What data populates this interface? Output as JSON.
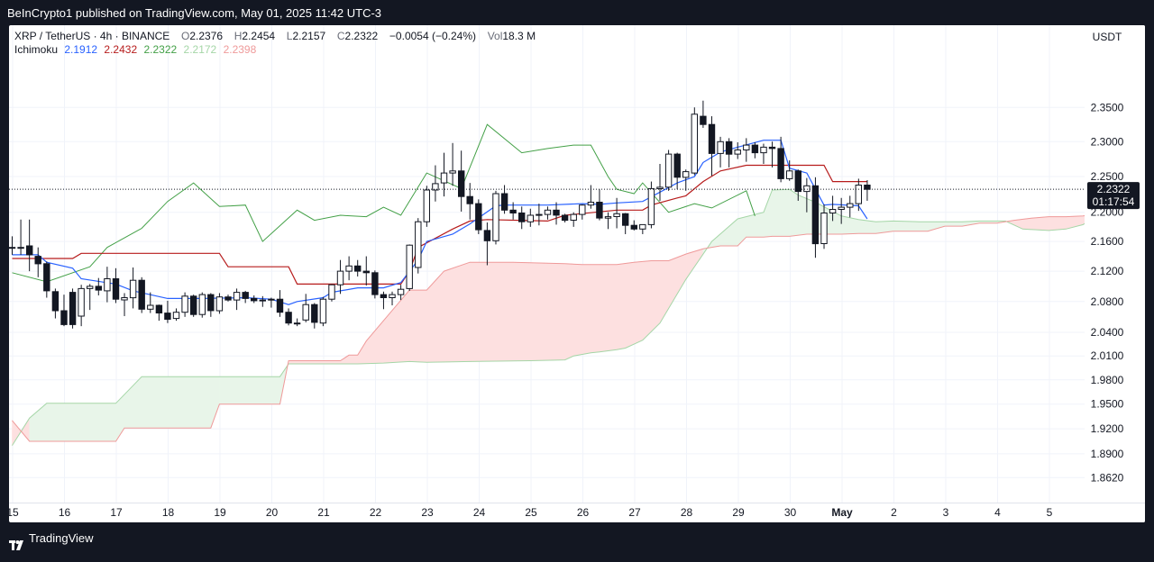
{
  "header": {
    "published": "BeInCrypto1 published on TradingView.com, May 01, 2025 11:42 UTC-3"
  },
  "legend": {
    "symbol": "XRP / TetherUS · 4h · BINANCE",
    "open_label": "O",
    "open": "2.2376",
    "high_label": "H",
    "high": "2.2454",
    "low_label": "L",
    "low": "2.2157",
    "close_label": "C",
    "close": "2.2322",
    "change": "−0.0054 (−0.24%)",
    "volume_label": "Vol",
    "volume": "18.3 M",
    "indicator_name": "Ichimoku",
    "indicator_values": [
      "2.1912",
      "2.2432",
      "2.2322",
      "2.2172",
      "2.2398"
    ]
  },
  "axis": {
    "currency": "USDT",
    "price_ticks": [
      "2.3500",
      "2.3000",
      "2.2500",
      "2.2000",
      "2.1600",
      "2.1200",
      "2.0800",
      "2.0400",
      "2.0100",
      "1.9800",
      "1.9500",
      "1.9200",
      "1.8900",
      "1.8620"
    ],
    "date_ticks": [
      "15",
      "16",
      "17",
      "18",
      "19",
      "20",
      "21",
      "22",
      "23",
      "24",
      "25",
      "26",
      "27",
      "28",
      "29",
      "30",
      "May",
      "2",
      "3",
      "4",
      "5"
    ],
    "last_price": "2.2322",
    "countdown": "01:17:54"
  },
  "footer": {
    "brand": "TradingView"
  },
  "colors": {
    "background": "#ffffff",
    "frame": "#131722",
    "conversion_line": "#2962ff",
    "base_line": "#b71c1c",
    "lagging_span": "#43a047",
    "leading_span_a": "#a5d6a7",
    "leading_span_b": "#ef9a9a",
    "cloud_bull": "#e8f5e9",
    "cloud_bear": "#fde0e0",
    "candle_up": "#ffffff",
    "candle_down": "#131722"
  },
  "chart_data": {
    "type": "candlestick",
    "timeframe": "4h",
    "y_scale": "log",
    "ylim": [
      1.846,
      2.392
    ],
    "first_candle_date": "Apr 14, 2025 20:00",
    "candles": [
      [
        2.152,
        2.167,
        2.142,
        2.152
      ],
      [
        2.151,
        2.19,
        2.142,
        2.152
      ],
      [
        2.154,
        2.19,
        2.12,
        2.142
      ],
      [
        2.14,
        2.152,
        2.112,
        2.13
      ],
      [
        2.13,
        2.133,
        2.085,
        2.094
      ],
      [
        2.093,
        2.097,
        2.058,
        2.068
      ],
      [
        2.068,
        2.089,
        2.048,
        2.05
      ],
      [
        2.092,
        2.097,
        2.045,
        2.05
      ],
      [
        2.061,
        2.102,
        2.048,
        2.097
      ],
      [
        2.097,
        2.103,
        2.069,
        2.1
      ],
      [
        2.1,
        2.111,
        2.088,
        2.095
      ],
      [
        2.094,
        2.126,
        2.079,
        2.11
      ],
      [
        2.11,
        2.124,
        2.078,
        2.083
      ],
      [
        2.082,
        2.091,
        2.061,
        2.085
      ],
      [
        2.085,
        2.125,
        2.071,
        2.108
      ],
      [
        2.108,
        2.112,
        2.065,
        2.07
      ],
      [
        2.07,
        2.092,
        2.065,
        2.075
      ],
      [
        2.075,
        2.076,
        2.055,
        2.065
      ],
      [
        2.065,
        2.081,
        2.052,
        2.057
      ],
      [
        2.058,
        2.071,
        2.055,
        2.066
      ],
      [
        2.066,
        2.092,
        2.06,
        2.087
      ],
      [
        2.087,
        2.089,
        2.06,
        2.063
      ],
      [
        2.063,
        2.092,
        2.059,
        2.089
      ],
      [
        2.089,
        2.091,
        2.06,
        2.068
      ],
      [
        2.068,
        2.091,
        2.064,
        2.086
      ],
      [
        2.086,
        2.089,
        2.08,
        2.082
      ],
      [
        2.082,
        2.097,
        2.069,
        2.092
      ],
      [
        2.092,
        2.094,
        2.078,
        2.084
      ],
      [
        2.084,
        2.088,
        2.078,
        2.081
      ],
      [
        2.081,
        2.087,
        2.073,
        2.082
      ],
      [
        2.082,
        2.085,
        2.072,
        2.083
      ],
      [
        2.083,
        2.095,
        2.06,
        2.066
      ],
      [
        2.066,
        2.071,
        2.049,
        2.052
      ],
      [
        2.052,
        2.058,
        2.048,
        2.051
      ],
      [
        2.056,
        2.09,
        2.053,
        2.076
      ],
      [
        2.076,
        2.078,
        2.045,
        2.053
      ],
      [
        2.052,
        2.086,
        2.048,
        2.083
      ],
      [
        2.083,
        2.103,
        2.08,
        2.102
      ],
      [
        2.102,
        2.135,
        2.09,
        2.12
      ],
      [
        2.12,
        2.14,
        2.108,
        2.127
      ],
      [
        2.127,
        2.135,
        2.113,
        2.12
      ],
      [
        2.12,
        2.14,
        2.101,
        2.118
      ],
      [
        2.118,
        2.121,
        2.084,
        2.089
      ],
      [
        2.089,
        2.093,
        2.07,
        2.085
      ],
      [
        2.085,
        2.093,
        2.075,
        2.089
      ],
      [
        2.089,
        2.102,
        2.082,
        2.096
      ],
      [
        2.097,
        2.156,
        2.094,
        2.155
      ],
      [
        2.125,
        2.192,
        2.117,
        2.187
      ],
      [
        2.187,
        2.237,
        2.18,
        2.231
      ],
      [
        2.231,
        2.266,
        2.215,
        2.24
      ],
      [
        2.241,
        2.284,
        2.222,
        2.255
      ],
      [
        2.255,
        2.298,
        2.237,
        2.258
      ],
      [
        2.258,
        2.287,
        2.201,
        2.222
      ],
      [
        2.222,
        2.241,
        2.19,
        2.212
      ],
      [
        2.212,
        2.218,
        2.17,
        2.176
      ],
      [
        2.175,
        2.186,
        2.128,
        2.161
      ],
      [
        2.161,
        2.23,
        2.156,
        2.226
      ],
      [
        2.226,
        2.238,
        2.198,
        2.203
      ],
      [
        2.203,
        2.214,
        2.19,
        2.199
      ],
      [
        2.199,
        2.208,
        2.177,
        2.187
      ],
      [
        2.187,
        2.205,
        2.18,
        2.196
      ],
      [
        2.196,
        2.212,
        2.182,
        2.197
      ],
      [
        2.197,
        2.208,
        2.19,
        2.203
      ],
      [
        2.203,
        2.214,
        2.183,
        2.196
      ],
      [
        2.196,
        2.198,
        2.186,
        2.189
      ],
      [
        2.189,
        2.2,
        2.18,
        2.197
      ],
      [
        2.197,
        2.211,
        2.19,
        2.21
      ],
      [
        2.21,
        2.238,
        2.205,
        2.214
      ],
      [
        2.214,
        2.232,
        2.189,
        2.192
      ],
      [
        2.192,
        2.2,
        2.177,
        2.194
      ],
      [
        2.194,
        2.22,
        2.178,
        2.198
      ],
      [
        2.198,
        2.199,
        2.17,
        2.182
      ],
      [
        2.182,
        2.189,
        2.175,
        2.177
      ],
      [
        2.177,
        2.182,
        2.17,
        2.183
      ],
      [
        2.183,
        2.243,
        2.178,
        2.233
      ],
      [
        2.233,
        2.268,
        2.216,
        2.235
      ],
      [
        2.235,
        2.288,
        2.23,
        2.282
      ],
      [
        2.282,
        2.284,
        2.232,
        2.249
      ],
      [
        2.249,
        2.26,
        2.23,
        2.257
      ],
      [
        2.255,
        2.35,
        2.252,
        2.34
      ],
      [
        2.337,
        2.36,
        2.32,
        2.325
      ],
      [
        2.325,
        2.337,
        2.251,
        2.283
      ],
      [
        2.283,
        2.307,
        2.263,
        2.3
      ],
      [
        2.3,
        2.305,
        2.263,
        2.282
      ],
      [
        2.282,
        2.299,
        2.275,
        2.288
      ],
      [
        2.288,
        2.305,
        2.271,
        2.295
      ],
      [
        2.295,
        2.299,
        2.276,
        2.284
      ],
      [
        2.284,
        2.297,
        2.268,
        2.292
      ],
      [
        2.292,
        2.3,
        2.263,
        2.29
      ],
      [
        2.29,
        2.307,
        2.242,
        2.247
      ],
      [
        2.247,
        2.273,
        2.244,
        2.258
      ],
      [
        2.258,
        2.26,
        2.216,
        2.229
      ],
      [
        2.229,
        2.248,
        2.2,
        2.237
      ],
      [
        2.237,
        2.249,
        2.138,
        2.157
      ],
      [
        2.157,
        2.211,
        2.15,
        2.199
      ],
      [
        2.199,
        2.223,
        2.188,
        2.204
      ],
      [
        2.204,
        2.22,
        2.184,
        2.207
      ],
      [
        2.207,
        2.223,
        2.193,
        2.212
      ],
      [
        2.212,
        2.247,
        2.202,
        2.238
      ],
      [
        2.238,
        2.245,
        2.216,
        2.232
      ]
    ],
    "conversion_line": [
      [
        0,
        2.142
      ],
      [
        3,
        2.142
      ],
      [
        4,
        2.132
      ],
      [
        7,
        2.124
      ],
      [
        8,
        2.11
      ],
      [
        12,
        2.103
      ],
      [
        14,
        2.094
      ],
      [
        18,
        2.084
      ],
      [
        22,
        2.084
      ],
      [
        27,
        2.085
      ],
      [
        30,
        2.083
      ],
      [
        32,
        2.076
      ],
      [
        33,
        2.08
      ],
      [
        36,
        2.085
      ],
      [
        37,
        2.092
      ],
      [
        40,
        2.098
      ],
      [
        43,
        2.098
      ],
      [
        45,
        2.105
      ],
      [
        47,
        2.135
      ],
      [
        48,
        2.16
      ],
      [
        51,
        2.17
      ],
      [
        53,
        2.184
      ],
      [
        56,
        2.209
      ],
      [
        57,
        2.21
      ],
      [
        62,
        2.21
      ],
      [
        66,
        2.212
      ],
      [
        68,
        2.211
      ],
      [
        70,
        2.213
      ],
      [
        73,
        2.215
      ],
      [
        77,
        2.241
      ],
      [
        79,
        2.25
      ],
      [
        80,
        2.27
      ],
      [
        82,
        2.285
      ],
      [
        84,
        2.292
      ],
      [
        87,
        2.302
      ],
      [
        89,
        2.302
      ],
      [
        90,
        2.262
      ],
      [
        92,
        2.255
      ],
      [
        94,
        2.21
      ],
      [
        95,
        2.211
      ],
      [
        98,
        2.209
      ],
      [
        99,
        2.191
      ]
    ],
    "base_line": [
      [
        0,
        2.137
      ],
      [
        7,
        2.137
      ],
      [
        8,
        2.144
      ],
      [
        24,
        2.144
      ],
      [
        25,
        2.126
      ],
      [
        32,
        2.126
      ],
      [
        33,
        2.103
      ],
      [
        40,
        2.103
      ],
      [
        45,
        2.103
      ],
      [
        46,
        2.12
      ],
      [
        47,
        2.152
      ],
      [
        51,
        2.177
      ],
      [
        53,
        2.188
      ],
      [
        55,
        2.19
      ],
      [
        62,
        2.188
      ],
      [
        64,
        2.196
      ],
      [
        70,
        2.203
      ],
      [
        73,
        2.203
      ],
      [
        74,
        2.21
      ],
      [
        77,
        2.22
      ],
      [
        78,
        2.223
      ],
      [
        80,
        2.243
      ],
      [
        82,
        2.258
      ],
      [
        85,
        2.266
      ],
      [
        94,
        2.266
      ],
      [
        95,
        2.243
      ],
      [
        99,
        2.243
      ]
    ],
    "lagging_span": [
      [
        0,
        2.118
      ],
      [
        4,
        2.106
      ],
      [
        9,
        2.126
      ],
      [
        11,
        2.152
      ],
      [
        15,
        2.178
      ],
      [
        18,
        2.215
      ],
      [
        21,
        2.241
      ],
      [
        24,
        2.208
      ],
      [
        27,
        2.21
      ],
      [
        29,
        2.16
      ],
      [
        33,
        2.203
      ],
      [
        35,
        2.189
      ],
      [
        38,
        2.196
      ],
      [
        41,
        2.194
      ],
      [
        43,
        2.207
      ],
      [
        45,
        2.196
      ],
      [
        48,
        2.255
      ],
      [
        52,
        2.233
      ],
      [
        55,
        2.325
      ],
      [
        59,
        2.284
      ],
      [
        62,
        2.29
      ],
      [
        65,
        2.295
      ],
      [
        67,
        2.295
      ],
      [
        69,
        2.25
      ],
      [
        70,
        2.232
      ],
      [
        72,
        2.226
      ],
      [
        73,
        2.241
      ],
      [
        76,
        2.2
      ],
      [
        79,
        2.212
      ],
      [
        81,
        2.206
      ],
      [
        85,
        2.23
      ],
      [
        86,
        2.195
      ]
    ],
    "leading_span_a": [
      [
        0,
        1.9
      ],
      [
        2,
        1.933
      ],
      [
        4,
        1.951
      ],
      [
        12,
        1.951
      ],
      [
        15,
        1.984
      ],
      [
        23,
        1.984
      ],
      [
        31,
        1.984
      ],
      [
        32,
        2.0
      ],
      [
        33,
        2.0
      ],
      [
        40,
        2.0
      ],
      [
        43,
        2.001
      ],
      [
        46,
        2.003
      ],
      [
        48,
        2.002
      ],
      [
        53,
        2.003
      ],
      [
        60,
        2.004
      ],
      [
        64,
        2.005
      ],
      [
        65,
        2.01
      ],
      [
        67,
        2.014
      ],
      [
        68,
        2.015
      ],
      [
        70,
        2.018
      ],
      [
        71,
        2.02
      ],
      [
        73,
        2.03
      ],
      [
        75,
        2.052
      ],
      [
        78,
        2.109
      ],
      [
        81,
        2.16
      ],
      [
        84,
        2.191
      ],
      [
        87,
        2.2
      ],
      [
        88,
        2.231
      ],
      [
        90,
        2.232
      ],
      [
        91,
        2.224
      ],
      [
        93,
        2.214
      ],
      [
        96,
        2.195
      ],
      [
        98,
        2.19
      ],
      [
        100,
        2.187
      ],
      [
        102,
        2.188
      ],
      [
        105,
        2.187
      ],
      [
        107,
        2.187
      ],
      [
        110,
        2.187
      ],
      [
        112,
        2.188
      ],
      [
        115,
        2.188
      ],
      [
        117,
        2.177
      ],
      [
        120,
        2.175
      ],
      [
        122,
        2.177
      ],
      [
        124,
        2.183
      ],
      [
        126,
        2.2
      ],
      [
        128,
        2.214
      ],
      [
        130,
        2.229
      ],
      [
        132,
        2.242
      ],
      [
        134,
        2.243
      ],
      [
        136,
        2.246
      ],
      [
        138,
        2.25
      ],
      [
        140,
        2.251
      ],
      [
        142,
        2.253
      ],
      [
        144,
        2.255
      ],
      [
        146,
        2.255
      ],
      [
        148,
        2.251
      ],
      [
        150,
        2.246
      ],
      [
        152,
        2.233
      ],
      [
        154,
        2.229
      ],
      [
        156,
        2.229
      ],
      [
        158,
        2.229
      ],
      [
        160,
        2.229
      ],
      [
        162,
        2.234
      ],
      [
        164,
        2.23
      ]
    ],
    "leading_span_b": [
      [
        0,
        1.93
      ],
      [
        2,
        1.905
      ],
      [
        12,
        1.905
      ],
      [
        13,
        1.921
      ],
      [
        23,
        1.921
      ],
      [
        24,
        1.95
      ],
      [
        31,
        1.95
      ],
      [
        32,
        2.004
      ],
      [
        38,
        2.004
      ],
      [
        39,
        2.011
      ],
      [
        40,
        2.011
      ],
      [
        41,
        2.029
      ],
      [
        46,
        2.095
      ],
      [
        48,
        2.095
      ],
      [
        50,
        2.12
      ],
      [
        53,
        2.132
      ],
      [
        58,
        2.132
      ],
      [
        64,
        2.13
      ],
      [
        66,
        2.129
      ],
      [
        68,
        2.129
      ],
      [
        70,
        2.129
      ],
      [
        72,
        2.132
      ],
      [
        74,
        2.134
      ],
      [
        76,
        2.134
      ],
      [
        78,
        2.143
      ],
      [
        80,
        2.15
      ],
      [
        82,
        2.154
      ],
      [
        84,
        2.154
      ],
      [
        85,
        2.166
      ],
      [
        87,
        2.166
      ],
      [
        88,
        2.167
      ],
      [
        90,
        2.167
      ],
      [
        92,
        2.17
      ],
      [
        94,
        2.17
      ],
      [
        96,
        2.17
      ],
      [
        98,
        2.171
      ],
      [
        100,
        2.171
      ],
      [
        102,
        2.174
      ],
      [
        104,
        2.174
      ],
      [
        106,
        2.174
      ],
      [
        108,
        2.181
      ],
      [
        110,
        2.181
      ],
      [
        112,
        2.185
      ],
      [
        114,
        2.185
      ],
      [
        116,
        2.189
      ],
      [
        118,
        2.192
      ],
      [
        120,
        2.194
      ],
      [
        122,
        2.194
      ],
      [
        124,
        2.195
      ],
      [
        126,
        2.199
      ],
      [
        128,
        2.199
      ],
      [
        130,
        2.199
      ],
      [
        132,
        2.2
      ],
      [
        134,
        2.201
      ],
      [
        136,
        2.201
      ],
      [
        138,
        2.201
      ],
      [
        140,
        2.201
      ],
      [
        142,
        2.202
      ],
      [
        144,
        2.205
      ],
      [
        146,
        2.205
      ],
      [
        148,
        2.205
      ],
      [
        150,
        2.205
      ],
      [
        152,
        2.206
      ],
      [
        154,
        2.208
      ],
      [
        156,
        2.208
      ],
      [
        158,
        2.215
      ],
      [
        160,
        2.225
      ],
      [
        162,
        2.232
      ],
      [
        164,
        2.24
      ]
    ]
  }
}
